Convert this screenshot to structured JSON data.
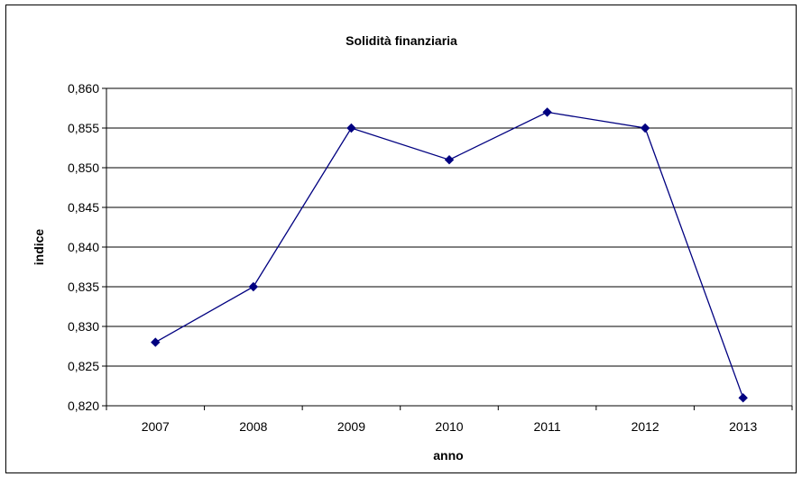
{
  "chart_data": {
    "type": "line",
    "title": "Solidità finanziaria",
    "xlabel": "anno",
    "ylabel": "indice",
    "categories": [
      "2007",
      "2008",
      "2009",
      "2010",
      "2011",
      "2012",
      "2013"
    ],
    "series": [
      {
        "values": [
          0.828,
          0.835,
          0.855,
          0.851,
          0.857,
          0.855,
          0.821
        ]
      }
    ],
    "ylim": [
      0.82,
      0.86
    ],
    "yticks": [
      "0,820",
      "0,825",
      "0,830",
      "0,835",
      "0,840",
      "0,845",
      "0,850",
      "0,855",
      "0,860"
    ],
    "grid": "horizontal",
    "legend": "none",
    "colors": {
      "line": "#000080",
      "marker": "#000080",
      "grid": "#000000",
      "plot_border": "#808080"
    }
  }
}
